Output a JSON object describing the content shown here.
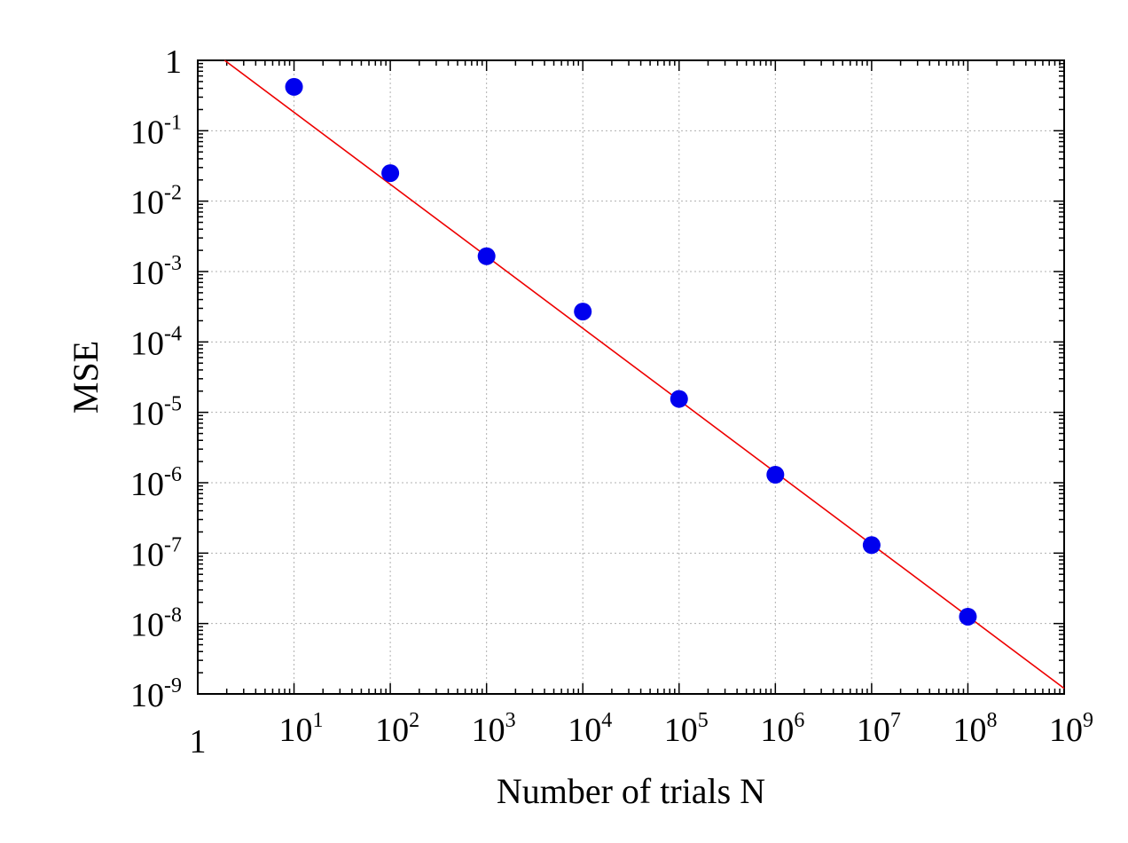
{
  "chart_data": {
    "type": "scatter",
    "title": "",
    "xlabel": "Number of trials N",
    "ylabel": "MSE",
    "xscale": "log",
    "yscale": "log",
    "xlim": [
      1,
      1000000000
    ],
    "ylim": [
      1e-09,
      1
    ],
    "grid": true,
    "x_ticks": [
      {
        "base": "1",
        "exp": ""
      },
      {
        "base": "10",
        "exp": "1"
      },
      {
        "base": "10",
        "exp": "2"
      },
      {
        "base": "10",
        "exp": "3"
      },
      {
        "base": "10",
        "exp": "4"
      },
      {
        "base": "10",
        "exp": "5"
      },
      {
        "base": "10",
        "exp": "6"
      },
      {
        "base": "10",
        "exp": "7"
      },
      {
        "base": "10",
        "exp": "8"
      },
      {
        "base": "10",
        "exp": "9"
      }
    ],
    "y_ticks": [
      {
        "base": "1",
        "exp": ""
      },
      {
        "base": "10",
        "exp": "-1"
      },
      {
        "base": "10",
        "exp": "-2"
      },
      {
        "base": "10",
        "exp": "-3"
      },
      {
        "base": "10",
        "exp": "-4"
      },
      {
        "base": "10",
        "exp": "-5"
      },
      {
        "base": "10",
        "exp": "-6"
      },
      {
        "base": "10",
        "exp": "-7"
      },
      {
        "base": "10",
        "exp": "-8"
      },
      {
        "base": "10",
        "exp": "-9"
      }
    ],
    "series": [
      {
        "kind": "points",
        "color": "#0000ee",
        "points": [
          {
            "x": 10,
            "y": 0.42
          },
          {
            "x": 100,
            "y": 0.025
          },
          {
            "x": 1000,
            "y": 0.00165
          },
          {
            "x": 10000,
            "y": 0.00027
          },
          {
            "x": 100000,
            "y": 1.55e-05
          },
          {
            "x": 1000000,
            "y": 1.3e-06
          },
          {
            "x": 10000000,
            "y": 1.3e-07
          },
          {
            "x": 100000000,
            "y": 1.25e-08
          }
        ]
      },
      {
        "kind": "line",
        "color": "#ee0000",
        "points": [
          {
            "x": 1.9,
            "y": 1
          },
          {
            "x": 1000000000,
            "y": 1.2e-09
          }
        ]
      }
    ]
  }
}
